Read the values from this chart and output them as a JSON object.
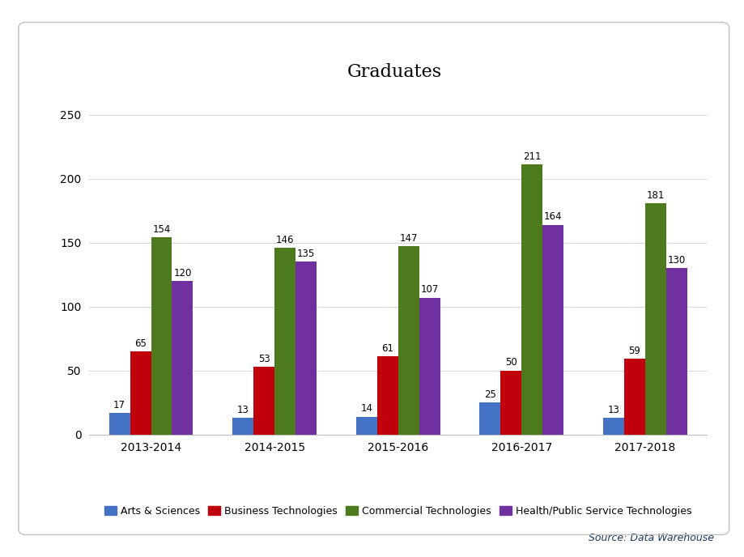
{
  "title": "Graduates",
  "years": [
    "2013-2014",
    "2014-2015",
    "2015-2016",
    "2016-2017",
    "2017-2018"
  ],
  "categories": [
    "Arts & Sciences",
    "Business Technologies",
    "Commercial Technologies",
    "Health/Public Service Technologies"
  ],
  "values": {
    "Arts & Sciences": [
      17,
      13,
      14,
      25,
      13
    ],
    "Business Technologies": [
      65,
      53,
      61,
      50,
      59
    ],
    "Commercial Technologies": [
      154,
      146,
      147,
      211,
      181
    ],
    "Health/Public Service Technologies": [
      120,
      135,
      107,
      164,
      130
    ]
  },
  "colors": {
    "Arts & Sciences": "#4472c4",
    "Business Technologies": "#c0000b",
    "Commercial Technologies": "#4e7a1e",
    "Health/Public Service Technologies": "#7030a0"
  },
  "ylim": [
    0,
    270
  ],
  "yticks": [
    0,
    50,
    100,
    150,
    200,
    250
  ],
  "bar_width": 0.17,
  "title_fontsize": 16,
  "tick_fontsize": 10,
  "annotation_fontsize": 8.5,
  "legend_fontsize": 9,
  "source_text": "Source: Data Warehouse",
  "background_color": "#ffffff",
  "plot_bg_color": "#ffffff",
  "grid_color": "#d9d9d9",
  "border_color": "#bfbfbf"
}
